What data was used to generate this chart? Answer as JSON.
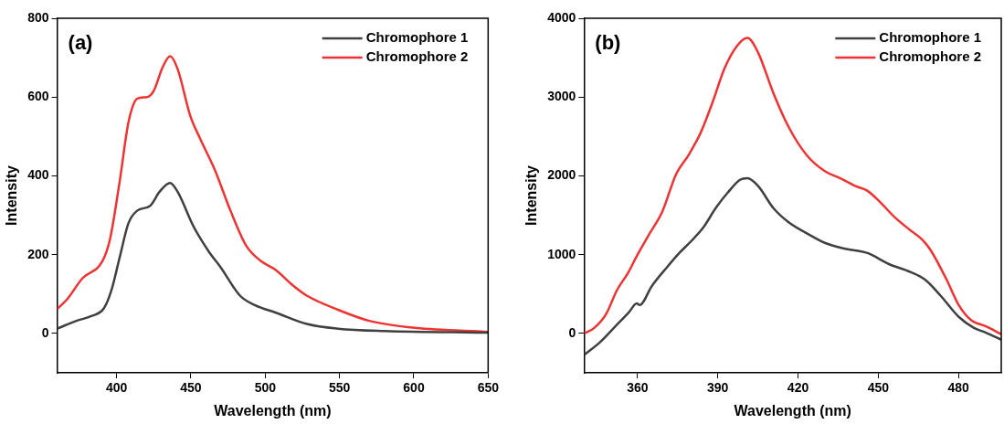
{
  "chart_data": [
    {
      "type": "line",
      "annotations": [
        "(a)"
      ],
      "xlabel": "Wavelength (nm)",
      "ylabel": "Intensity",
      "xlim": [
        360,
        650
      ],
      "xticks": [
        400,
        450,
        500,
        550,
        600,
        650
      ],
      "ylim": [
        -100,
        800
      ],
      "yticks": [
        0,
        200,
        400,
        600,
        800
      ],
      "grid": false,
      "legend": "top right",
      "marker": "none",
      "line_style": "solid",
      "series": [
        {
          "name": "Chromophore 1",
          "color": "#404040",
          "x": [
            360,
            373,
            383,
            391.5,
            396.7,
            402,
            408,
            414,
            422.6,
            429,
            436,
            441,
            451.7,
            462,
            470,
            483,
            493,
            507.7,
            528,
            549,
            580,
            650
          ],
          "values": [
            12,
            32,
            44,
            64,
            112,
            192,
            280,
            312,
            324,
            360,
            382,
            360,
            272,
            208,
            168,
            96,
            72,
            52,
            24,
            12,
            6,
            2
          ]
        },
        {
          "name": "Chromophore 2",
          "color": "#ee3333",
          "x": [
            360,
            367,
            377,
            390.5,
            395.6,
            402,
            408,
            414,
            420.5,
            425,
            431,
            436,
            441,
            449.6,
            456,
            466,
            476.6,
            487,
            497,
            507.5,
            518,
            528,
            549,
            570,
            601,
            650
          ],
          "values": [
            62,
            88,
            140,
            184,
            240,
            384,
            536,
            596,
            600,
            616,
            676,
            704,
            672,
            552,
            496,
            416,
            312,
            224,
            184,
            160,
            124,
            96,
            60,
            32,
            14,
            4
          ]
        }
      ]
    },
    {
      "type": "line",
      "annotations": [
        "(b)"
      ],
      "xlabel": "Wavelength (nm)",
      "ylabel": "Intensity",
      "xlim": [
        340,
        496
      ],
      "xticks": [
        360,
        390,
        420,
        450,
        480
      ],
      "ylim": [
        -500,
        4000
      ],
      "yticks": [
        0,
        1000,
        2000,
        3000,
        4000
      ],
      "grid": false,
      "legend": "top right",
      "marker": "none",
      "line_style": "solid",
      "series": [
        {
          "name": "Chromophore 1",
          "color": "#404040",
          "x": [
            340.1,
            346,
            351.7,
            356.8,
            359.7,
            360.8,
            365.3,
            371,
            375.6,
            380,
            384.7,
            389.2,
            393.8,
            398.3,
            401.1,
            405.1,
            410.8,
            416.5,
            423.3,
            430,
            436.9,
            446,
            454,
            462,
            467.6,
            473.3,
            480.1,
            485.8,
            490.3,
            496
          ],
          "values": [
            -270,
            -110,
            90,
            270,
            380,
            360,
            600,
            840,
            1020,
            1170,
            1350,
            1590,
            1790,
            1950,
            1970,
            1870,
            1590,
            1410,
            1270,
            1150,
            1080,
            1020,
            880,
            780,
            680,
            480,
            210,
            70,
            10,
            -80
          ]
        },
        {
          "name": "Chromophore 2",
          "color": "#ee3333",
          "x": [
            340.1,
            343.8,
            348.3,
            352.3,
            356.3,
            360,
            364.2,
            369.3,
            374.4,
            379,
            383.5,
            388,
            392.6,
            397.2,
            401.1,
            405,
            410.8,
            416.5,
            423.3,
            430,
            435.8,
            441.5,
            446,
            450.6,
            456.3,
            462,
            466.5,
            469.9,
            475.6,
            480.1,
            484.7,
            490.3,
            496
          ],
          "values": [
            0,
            70,
            250,
            550,
            760,
            1000,
            1250,
            1550,
            2020,
            2260,
            2540,
            2930,
            3370,
            3650,
            3750,
            3570,
            3050,
            2620,
            2260,
            2060,
            1970,
            1870,
            1810,
            1670,
            1470,
            1310,
            1190,
            1040,
            680,
            360,
            170,
            90,
            -10
          ]
        }
      ]
    }
  ]
}
